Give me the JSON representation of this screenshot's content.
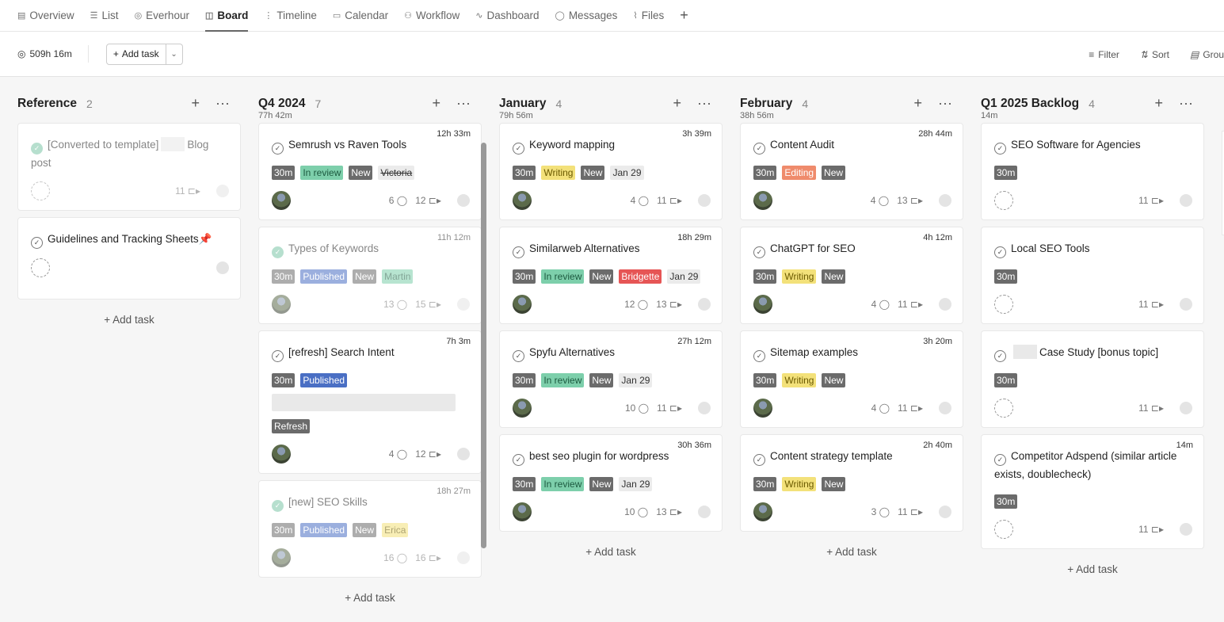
{
  "tabs": [
    {
      "icon": "clipboard-icon",
      "glyph": "▤",
      "label": "Overview"
    },
    {
      "icon": "list-icon",
      "glyph": "☰",
      "label": "List"
    },
    {
      "icon": "everhour-icon",
      "glyph": "◎",
      "label": "Everhour"
    },
    {
      "icon": "board-icon",
      "glyph": "◫",
      "label": "Board",
      "active": true
    },
    {
      "icon": "timeline-icon",
      "glyph": "⋮",
      "label": "Timeline"
    },
    {
      "icon": "calendar-icon",
      "glyph": "▭",
      "label": "Calendar"
    },
    {
      "icon": "workflow-icon",
      "glyph": "⚇",
      "label": "Workflow"
    },
    {
      "icon": "dashboard-icon",
      "glyph": "∿",
      "label": "Dashboard"
    },
    {
      "icon": "messages-icon",
      "glyph": "◯",
      "label": "Messages"
    },
    {
      "icon": "files-icon",
      "glyph": "⌇",
      "label": "Files"
    }
  ],
  "toolbar": {
    "tracked": "509h 16m",
    "add_task": "Add task",
    "filter": "Filter",
    "sort": "Sort",
    "group": "Grou"
  },
  "colors": {
    "dark": "#6b6b6b",
    "review": "#7dcfab",
    "writing": "#f3e17a",
    "editing": "#ef8b6c",
    "published": "#4a6fc4",
    "published_light": "#8aa6e0",
    "red": "#e65555",
    "light": "#ebebeb"
  },
  "add_task_label": "+ Add task",
  "columns": [
    {
      "title": "Reference",
      "count": "2",
      "time": "",
      "cards": [
        {
          "title": "[Converted to template]",
          "title_after": "Blog post",
          "blur_inline": true,
          "faded": true,
          "done": true,
          "tags": [],
          "subtasks": "11",
          "avatar": "empty"
        },
        {
          "title": "Guidelines and Tracking Sheets📌",
          "tags": [],
          "avatar": "empty"
        }
      ]
    },
    {
      "title": "Q4 2024",
      "count": "7",
      "time": "77h 42m",
      "cards": [
        {
          "time": "12h 33m",
          "title": "Semrush vs Raven Tools",
          "tags": [
            {
              "t": "30m",
              "c": "dark"
            },
            {
              "t": "In review",
              "c": "review"
            },
            {
              "t": "New",
              "c": "dark"
            },
            {
              "t": "Victoria",
              "c": "light",
              "strike": true
            }
          ],
          "comments": "6",
          "subtasks": "12",
          "avatar": "photo"
        },
        {
          "time": "11h 12m",
          "title": "Types of Keywords",
          "done": true,
          "faded": true,
          "tags": [
            {
              "t": "30m",
              "c": "dark"
            },
            {
              "t": "Published",
              "c": "published"
            },
            {
              "t": "New",
              "c": "dark"
            },
            {
              "t": "Martin",
              "c": "review"
            }
          ],
          "comments": "13",
          "subtasks": "15",
          "avatar": "photo"
        },
        {
          "time": "7h 3m",
          "title": "[refresh] Search Intent",
          "tags": [
            {
              "t": "30m",
              "c": "dark"
            },
            {
              "t": "Published",
              "c": "published"
            }
          ],
          "blur_block": true,
          "tags2": [
            {
              "t": "Refresh",
              "c": "dark"
            }
          ],
          "comments": "4",
          "subtasks": "12",
          "avatar": "photo"
        },
        {
          "time": "18h 27m",
          "title": "[new] SEO Skills",
          "done": true,
          "faded": true,
          "tags": [
            {
              "t": "30m",
              "c": "dark"
            },
            {
              "t": "Published",
              "c": "published"
            },
            {
              "t": "New",
              "c": "dark"
            },
            {
              "t": "Erica",
              "c": "writing"
            }
          ],
          "comments": "16",
          "subtasks": "16",
          "avatar": "photo"
        }
      ]
    },
    {
      "title": "January",
      "count": "4",
      "time": "79h 56m",
      "cards": [
        {
          "time": "3h 39m",
          "title": "Keyword mapping",
          "tags": [
            {
              "t": "30m",
              "c": "dark"
            },
            {
              "t": "Writing",
              "c": "writing"
            },
            {
              "t": "New",
              "c": "dark"
            },
            {
              "t": "Jan 29",
              "c": "light"
            }
          ],
          "comments": "4",
          "subtasks": "11",
          "avatar": "photo"
        },
        {
          "time": "18h 29m",
          "title": "Similarweb Alternatives",
          "tags": [
            {
              "t": "30m",
              "c": "dark"
            },
            {
              "t": "In review",
              "c": "review"
            },
            {
              "t": "New",
              "c": "dark"
            },
            {
              "t": "Bridgette",
              "c": "red"
            },
            {
              "t": "Jan 29",
              "c": "light"
            }
          ],
          "comments": "12",
          "subtasks": "13",
          "avatar": "photo"
        },
        {
          "time": "27h 12m",
          "title": "Spyfu Alternatives",
          "tags": [
            {
              "t": "30m",
              "c": "dark"
            },
            {
              "t": "In review",
              "c": "review"
            },
            {
              "t": "New",
              "c": "dark"
            },
            {
              "t": "Jan 29",
              "c": "light"
            }
          ],
          "comments": "10",
          "subtasks": "11",
          "avatar": "photo"
        },
        {
          "time": "30h 36m",
          "title": "best seo plugin for wordpress",
          "tags": [
            {
              "t": "30m",
              "c": "dark"
            },
            {
              "t": "In review",
              "c": "review"
            },
            {
              "t": "New",
              "c": "dark"
            },
            {
              "t": "Jan 29",
              "c": "light"
            }
          ],
          "comments": "10",
          "subtasks": "13",
          "avatar": "photo"
        }
      ]
    },
    {
      "title": "February",
      "count": "4",
      "time": "38h 56m",
      "cards": [
        {
          "time": "28h 44m",
          "title": "Content Audit",
          "tags": [
            {
              "t": "30m",
              "c": "dark"
            },
            {
              "t": "Editing",
              "c": "editing"
            },
            {
              "t": "New",
              "c": "dark"
            }
          ],
          "comments": "4",
          "subtasks": "13",
          "avatar": "photo"
        },
        {
          "time": "4h 12m",
          "title": "ChatGPT for SEO",
          "tags": [
            {
              "t": "30m",
              "c": "dark"
            },
            {
              "t": "Writing",
              "c": "writing"
            },
            {
              "t": "New",
              "c": "dark"
            }
          ],
          "comments": "4",
          "subtasks": "11",
          "avatar": "photo"
        },
        {
          "time": "3h 20m",
          "title": "Sitemap examples",
          "tags": [
            {
              "t": "30m",
              "c": "dark"
            },
            {
              "t": "Writing",
              "c": "writing"
            },
            {
              "t": "New",
              "c": "dark"
            }
          ],
          "comments": "4",
          "subtasks": "11",
          "avatar": "photo"
        },
        {
          "time": "2h 40m",
          "title": "Content strategy template",
          "tags": [
            {
              "t": "30m",
              "c": "dark"
            },
            {
              "t": "Writing",
              "c": "writing"
            },
            {
              "t": "New",
              "c": "dark"
            }
          ],
          "comments": "3",
          "subtasks": "11",
          "avatar": "photo"
        }
      ]
    },
    {
      "title": "Q1 2025 Backlog",
      "count": "4",
      "time": "14m",
      "cards": [
        {
          "title": "SEO Software for Agencies",
          "tags": [
            {
              "t": "30m",
              "c": "dark"
            }
          ],
          "subtasks": "11",
          "avatar": "empty"
        },
        {
          "title": "Local SEO Tools",
          "tags": [
            {
              "t": "30m",
              "c": "dark"
            }
          ],
          "subtasks": "11",
          "avatar": "empty"
        },
        {
          "title": "",
          "title_after": "Case Study [bonus topic]",
          "blur_inline": true,
          "tags": [
            {
              "t": "30m",
              "c": "dark"
            }
          ],
          "subtasks": "11",
          "avatar": "empty"
        },
        {
          "time": "14m",
          "title": "Competitor Adspend (similar article exists, doublecheck)",
          "tags": [
            {
              "t": "30m",
              "c": "dark"
            }
          ],
          "subtasks": "11",
          "avatar": "empty"
        }
      ]
    }
  ]
}
